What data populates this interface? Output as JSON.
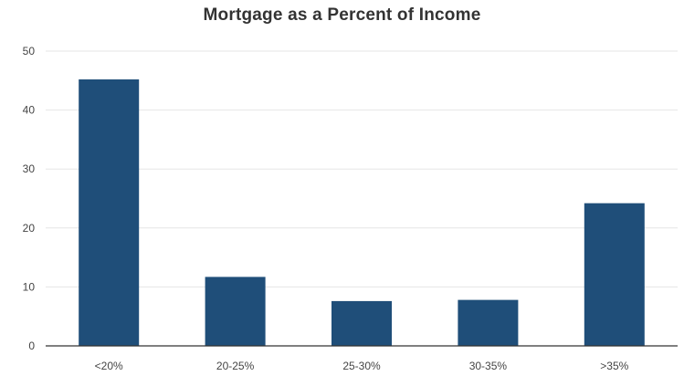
{
  "chart_data": {
    "type": "bar",
    "title": "Mortgage as a Percent of Income",
    "xlabel": "",
    "ylabel": "",
    "categories": [
      "<20%",
      "20-25%",
      "25-30%",
      "30-35%",
      ">35%"
    ],
    "values": [
      45.2,
      11.7,
      7.6,
      7.8,
      24.2
    ],
    "ylim": [
      0,
      50
    ],
    "yticks": [
      "0",
      "10",
      "20",
      "30",
      "40",
      "50"
    ],
    "grid": true,
    "legend": "none",
    "colors": {
      "bar": "#1f4e79",
      "grid": "#e6e6e6",
      "axis": "#333333"
    }
  }
}
